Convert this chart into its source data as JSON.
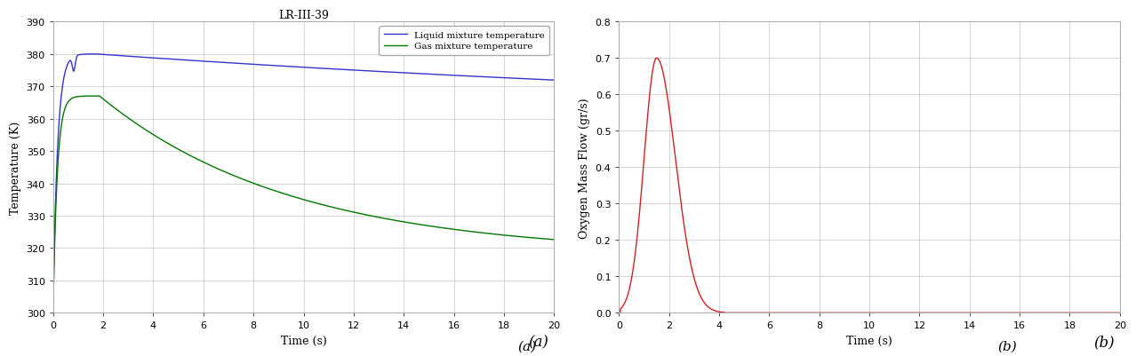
{
  "title_left": "LR-III-39",
  "label_a": "(a)",
  "label_b": "(b)",
  "left_xlabel": "Time (s)",
  "left_ylabel": "Temperature (K)",
  "left_xlim": [
    0,
    20
  ],
  "left_ylim": [
    300,
    390
  ],
  "left_yticks": [
    300,
    310,
    320,
    330,
    340,
    350,
    360,
    370,
    380,
    390
  ],
  "left_xticks": [
    0,
    2,
    4,
    6,
    8,
    10,
    12,
    14,
    16,
    18,
    20
  ],
  "right_xlabel": "Time (s)",
  "right_ylabel": "Oxygen Mass Flow (gr/s)",
  "right_xlim": [
    0,
    20
  ],
  "right_ylim": [
    0,
    0.8
  ],
  "right_yticks": [
    0,
    0.1,
    0.2,
    0.3,
    0.4,
    0.5,
    0.6,
    0.7,
    0.8
  ],
  "right_xticks": [
    0,
    2,
    4,
    6,
    8,
    10,
    12,
    14,
    16,
    18,
    20
  ],
  "liquid_color": "#3333cc",
  "gas_color": "#007700",
  "flow_color": "#cc2222",
  "legend_liquid": "Liquid mixture temperature",
  "legend_gas": "Gas mixture temperature",
  "background_color": "#ffffff",
  "grid_color": "#cccccc",
  "spine_color": "#aaaaaa"
}
